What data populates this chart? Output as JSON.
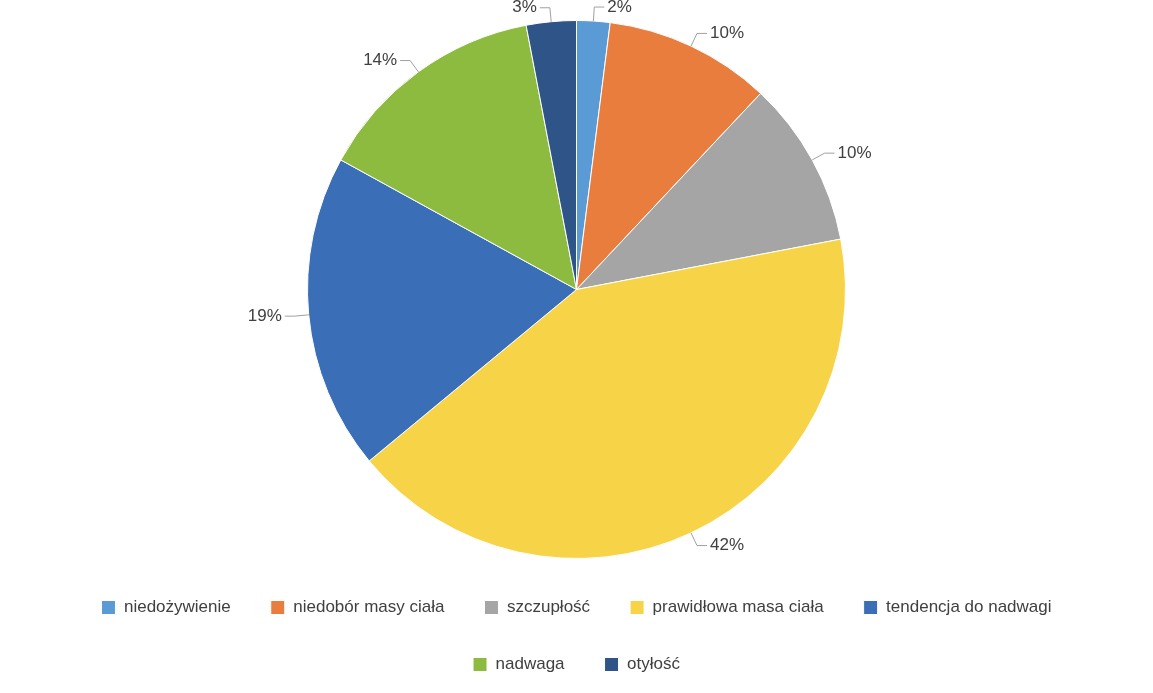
{
  "chart_data": {
    "type": "pie",
    "categories": [
      "niedożywienie",
      "niedobór masy ciała",
      "szczupłość",
      "prawidłowa masa ciała",
      "tendencja do nadwagi",
      "nadwaga",
      "otyłość"
    ],
    "values": [
      2,
      10,
      10,
      42,
      19,
      14,
      3
    ],
    "colors": [
      "#5b9bd5",
      "#e87d3e",
      "#a5a5a5",
      "#f7d447",
      "#3a6fb8",
      "#8dbb3f",
      "#2f5487"
    ],
    "value_labels": [
      "2%",
      "10%",
      "10%",
      "42%",
      "19%",
      "14%",
      "3%"
    ],
    "legend": "bottom"
  }
}
